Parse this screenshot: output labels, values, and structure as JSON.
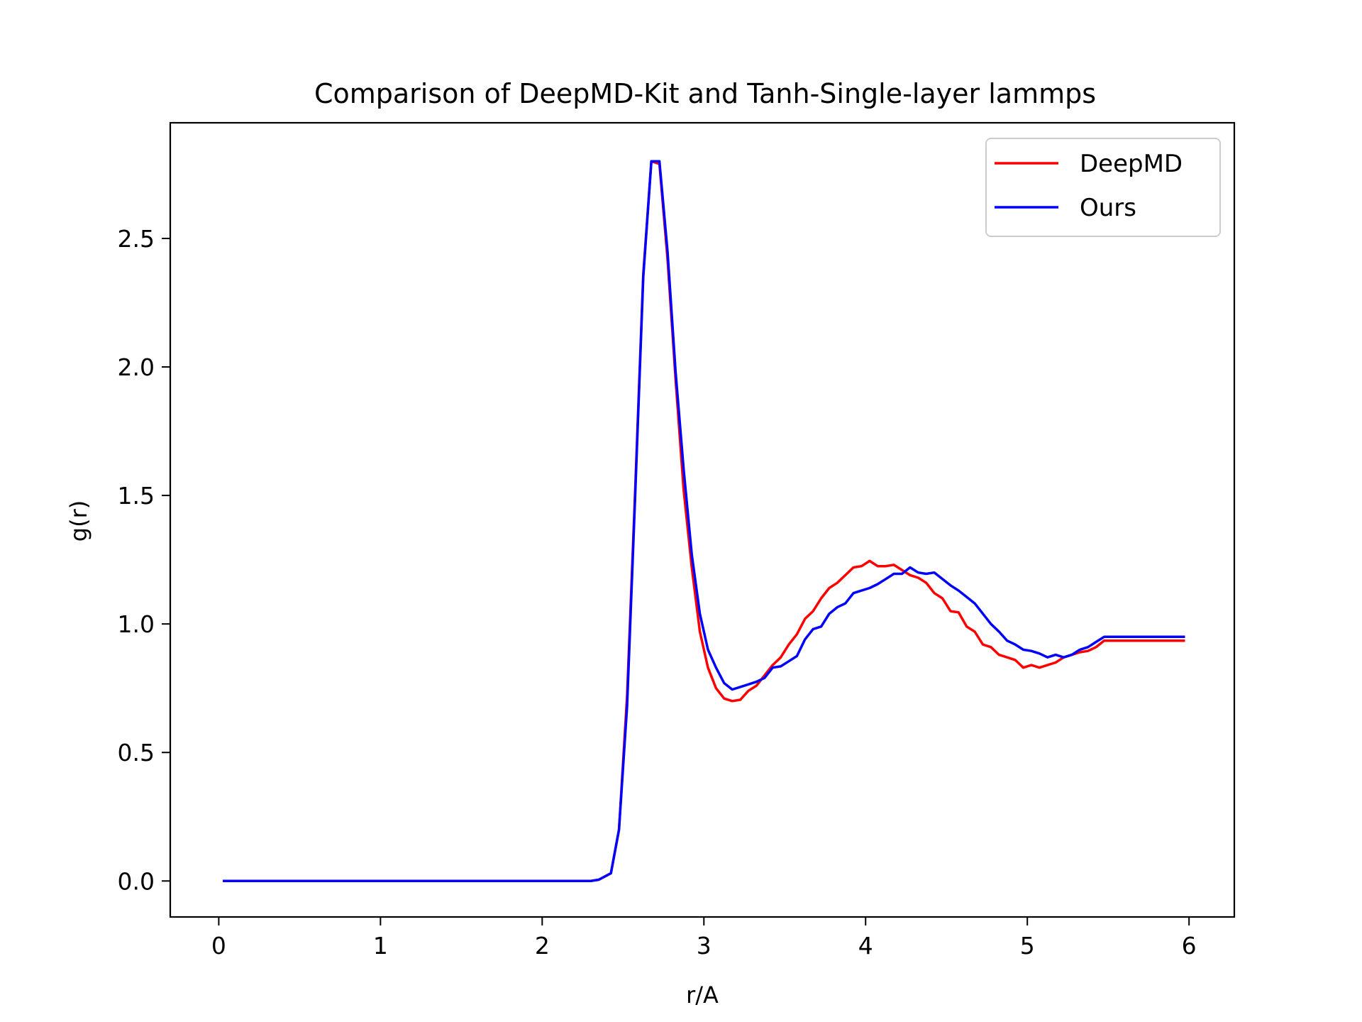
{
  "chart_data": {
    "type": "line",
    "title": "Comparison of DeepMD-Kit and Tanh-Single-layer lammps",
    "xlabel": "r/A",
    "ylabel": "g(r)",
    "xlim": [
      -0.3,
      6.28
    ],
    "ylim": [
      -0.14,
      2.95
    ],
    "xticks": [
      0,
      1,
      2,
      3,
      4,
      5,
      6
    ],
    "xtick_labels": [
      "0",
      "1",
      "2",
      "3",
      "4",
      "5",
      "6"
    ],
    "yticks": [
      0.0,
      0.5,
      1.0,
      1.5,
      2.0,
      2.5
    ],
    "ytick_labels": [
      "0.0",
      "0.5",
      "1.0",
      "1.5",
      "2.0",
      "2.5"
    ],
    "grid": false,
    "legend_position": "top-right",
    "x": [
      0.025,
      0.1,
      0.2,
      0.3,
      0.4,
      0.5,
      0.6,
      0.7,
      0.8,
      0.9,
      1.0,
      1.1,
      1.2,
      1.3,
      1.4,
      1.5,
      1.6,
      1.7,
      1.8,
      1.9,
      2.0,
      2.1,
      2.2,
      2.3,
      2.35,
      2.425,
      2.475,
      2.525,
      2.575,
      2.625,
      2.675,
      2.725,
      2.775,
      2.825,
      2.875,
      2.925,
      2.975,
      3.025,
      3.075,
      3.125,
      3.175,
      3.225,
      3.275,
      3.325,
      3.375,
      3.425,
      3.475,
      3.525,
      3.575,
      3.625,
      3.675,
      3.725,
      3.775,
      3.825,
      3.875,
      3.925,
      3.975,
      4.025,
      4.075,
      4.125,
      4.175,
      4.225,
      4.275,
      4.325,
      4.375,
      4.425,
      4.475,
      4.525,
      4.575,
      4.625,
      4.675,
      4.725,
      4.775,
      4.825,
      4.875,
      4.925,
      4.975,
      5.025,
      5.075,
      5.125,
      5.175,
      5.225,
      5.275,
      5.325,
      5.375,
      5.425,
      5.475,
      5.525,
      5.575,
      5.625,
      5.675,
      5.725,
      5.775,
      5.825,
      5.875,
      5.925,
      5.975
    ],
    "series": [
      {
        "name": "DeepMD",
        "color": "#ff0000",
        "values": [
          0.0,
          0.0,
          0.0,
          0.0,
          0.0,
          0.0,
          0.0,
          0.0,
          0.0,
          0.0,
          0.0,
          0.0,
          0.0,
          0.0,
          0.0,
          0.0,
          0.0,
          0.0,
          0.0,
          0.0,
          0.0,
          0.0,
          0.0,
          0.0,
          0.005,
          0.03,
          0.2,
          0.72,
          1.52,
          2.36,
          2.8,
          2.79,
          2.42,
          1.95,
          1.52,
          1.22,
          0.97,
          0.83,
          0.75,
          0.71,
          0.7,
          0.705,
          0.74,
          0.76,
          0.8,
          0.84,
          0.87,
          0.92,
          0.96,
          1.02,
          1.05,
          1.1,
          1.14,
          1.16,
          1.19,
          1.22,
          1.225,
          1.245,
          1.225,
          1.225,
          1.23,
          1.21,
          1.19,
          1.18,
          1.16,
          1.12,
          1.1,
          1.05,
          1.045,
          0.99,
          0.97,
          0.92,
          0.91,
          0.88,
          0.87,
          0.86,
          0.83,
          0.84,
          0.83,
          0.84,
          0.85,
          0.87,
          0.88,
          0.89,
          0.895,
          0.91,
          0.935,
          0.935,
          0.935,
          0.935,
          0.935,
          0.935,
          0.935,
          0.935,
          0.935,
          0.935,
          0.935
        ]
      },
      {
        "name": "Ours",
        "color": "#0000ff",
        "values": [
          0.0,
          0.0,
          0.0,
          0.0,
          0.0,
          0.0,
          0.0,
          0.0,
          0.0,
          0.0,
          0.0,
          0.0,
          0.0,
          0.0,
          0.0,
          0.0,
          0.0,
          0.0,
          0.0,
          0.0,
          0.0,
          0.0,
          0.0,
          0.0,
          0.005,
          0.03,
          0.2,
          0.68,
          1.5,
          2.35,
          2.8,
          2.8,
          2.45,
          1.98,
          1.6,
          1.27,
          1.04,
          0.9,
          0.83,
          0.77,
          0.745,
          0.755,
          0.765,
          0.775,
          0.79,
          0.83,
          0.835,
          0.855,
          0.875,
          0.94,
          0.98,
          0.99,
          1.04,
          1.065,
          1.08,
          1.12,
          1.13,
          1.14,
          1.155,
          1.175,
          1.195,
          1.195,
          1.22,
          1.2,
          1.195,
          1.2,
          1.175,
          1.15,
          1.13,
          1.105,
          1.08,
          1.04,
          1.0,
          0.97,
          0.935,
          0.92,
          0.9,
          0.895,
          0.885,
          0.87,
          0.88,
          0.87,
          0.88,
          0.9,
          0.91,
          0.93,
          0.95,
          0.95,
          0.95,
          0.95,
          0.95,
          0.95,
          0.95,
          0.95,
          0.95,
          0.95,
          0.95
        ]
      }
    ]
  }
}
